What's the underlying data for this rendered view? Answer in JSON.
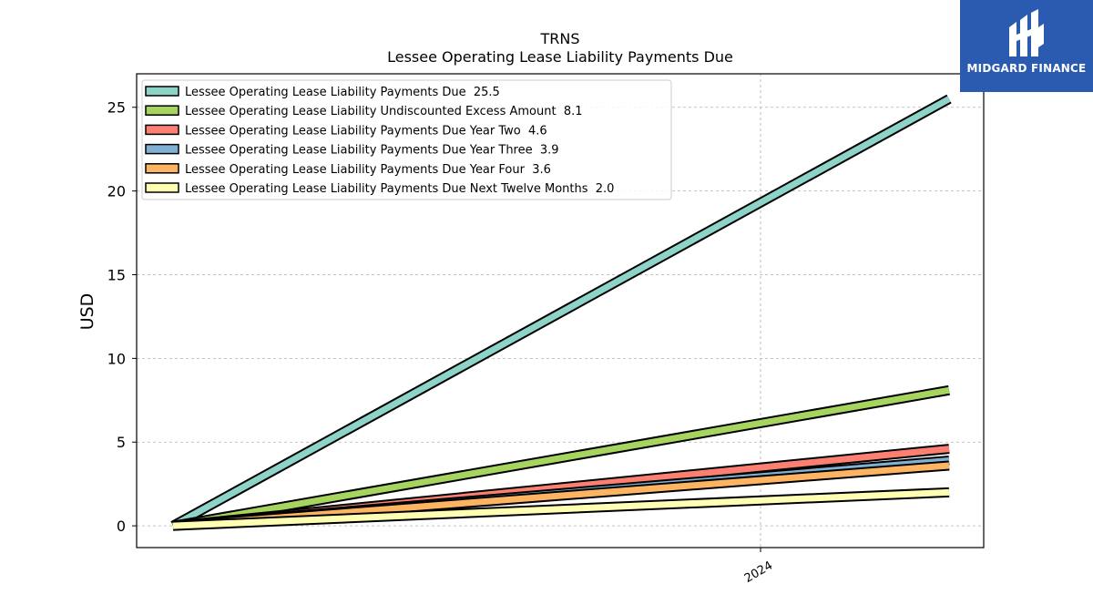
{
  "chart_data": {
    "type": "line",
    "title": "TRNS",
    "subtitle": "Lessee Operating Lease Liability Payments Due",
    "xlabel": "",
    "ylabel": "USD",
    "x_ticks": [
      "2024"
    ],
    "ylim": [
      -1.3,
      27
    ],
    "y_ticks": [
      0,
      5,
      10,
      15,
      20,
      25
    ],
    "grid": true,
    "legend_position": "top-left",
    "series": [
      {
        "name": "Lessee Operating Lease Liability Payments Due  25.5",
        "color": "#8dd3c7",
        "values": [
          0,
          25.5
        ]
      },
      {
        "name": "Lessee Operating Lease Liability Undiscounted Excess Amount  8.1",
        "color": "#a6d45e",
        "values": [
          0,
          8.1
        ]
      },
      {
        "name": "Lessee Operating Lease Liability Payments Due Year Two  4.6",
        "color": "#fb8072",
        "values": [
          0,
          4.6
        ]
      },
      {
        "name": "Lessee Operating Lease Liability Payments Due Year Three  3.9",
        "color": "#80b1d3",
        "values": [
          0,
          3.9
        ]
      },
      {
        "name": "Lessee Operating Lease Liability Payments Due Year Four  3.6",
        "color": "#fdb462",
        "values": [
          0,
          3.6
        ]
      },
      {
        "name": "Lessee Operating Lease Liability Payments Due Next Twelve Months  2.0",
        "color": "#ffffb3",
        "values": [
          0,
          2.0
        ]
      }
    ]
  },
  "logo": {
    "text": "MIDGARD FINANCE",
    "background": "#2a5bb0"
  }
}
